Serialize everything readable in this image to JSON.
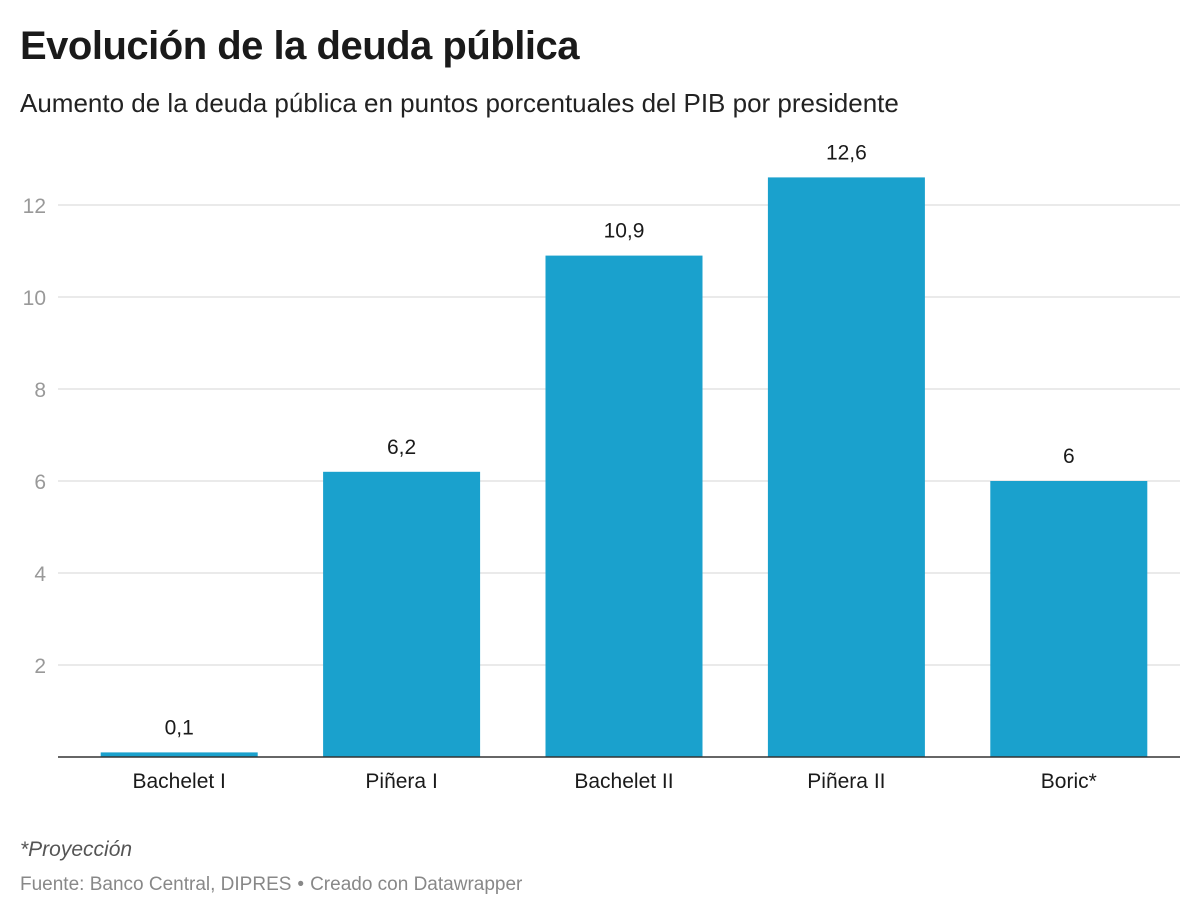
{
  "header": {
    "title": "Evolución de la deuda pública",
    "subtitle": "Aumento de la deuda pública en puntos porcentuales del PIB por presidente"
  },
  "chart_data": {
    "type": "bar",
    "categories": [
      "Bachelet I",
      "Piñera I",
      "Bachelet II",
      "Piñera II",
      "Boric*"
    ],
    "values": [
      0.1,
      6.2,
      10.9,
      12.6,
      6
    ],
    "value_labels": [
      "0,1",
      "6,2",
      "10,9",
      "12,6",
      "6"
    ],
    "yticks": [
      2,
      4,
      6,
      8,
      10,
      12
    ],
    "ylim": [
      0,
      13.2
    ],
    "grid": true,
    "legend": "none",
    "bar_color": "#1aa1cd",
    "grid_color": "#e3e3e3",
    "tick_color": "#999999"
  },
  "footer": {
    "note": "*Proyección",
    "source": "Fuente: Banco Central, DIPRES",
    "separator": "•",
    "credit": "Creado con Datawrapper"
  }
}
